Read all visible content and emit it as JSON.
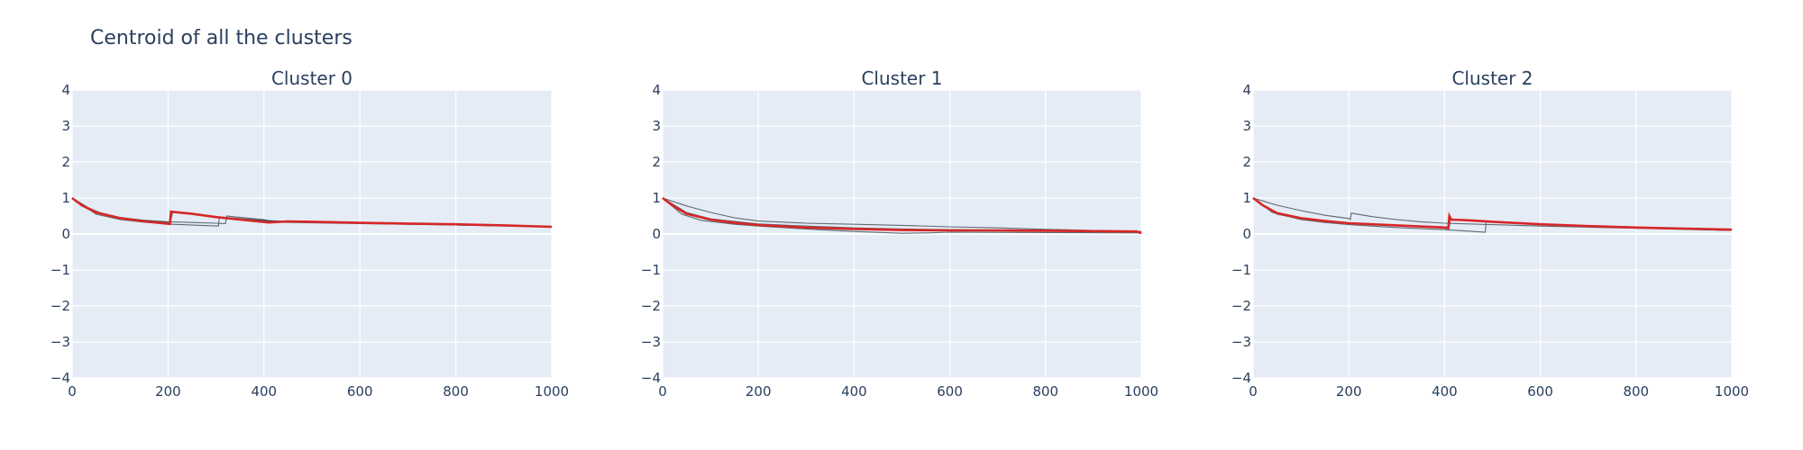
{
  "title": "Centroid of all the clusters",
  "colors": {
    "plot_bg": "#e5ecf6",
    "grid": "#ffffff",
    "member_line": "#2f3e46",
    "centroid_line": "#d62728"
  },
  "chart_data": [
    {
      "type": "line",
      "title": "Cluster 0",
      "xlabel": "",
      "ylabel": "",
      "xlim": [
        0,
        1000
      ],
      "ylim": [
        -4,
        4
      ],
      "x_ticks": [
        "0",
        "200",
        "400",
        "600",
        "800",
        "1000"
      ],
      "y_ticks": [
        "−4",
        "−3",
        "−2",
        "−1",
        "0",
        "1",
        "2",
        "3",
        "4"
      ],
      "grid": true,
      "series": [
        {
          "role": "member",
          "points": [
            [
              0,
              1.0
            ],
            [
              50,
              0.6
            ],
            [
              100,
              0.45
            ],
            [
              150,
              0.38
            ],
            [
              200,
              0.34
            ],
            [
              204,
              0.34
            ],
            [
              250,
              0.32
            ],
            [
              300,
              0.3
            ],
            [
              320,
              0.29
            ],
            [
              322,
              0.5
            ],
            [
              400,
              0.4
            ],
            [
              420,
              0.33
            ],
            [
              500,
              0.31
            ],
            [
              600,
              0.29
            ],
            [
              800,
              0.25
            ],
            [
              1000,
              0.2
            ]
          ]
        },
        {
          "role": "member",
          "points": [
            [
              0,
              1.0
            ],
            [
              50,
              0.55
            ],
            [
              100,
              0.4
            ],
            [
              150,
              0.33
            ],
            [
              200,
              0.28
            ],
            [
              210,
              0.27
            ],
            [
              305,
              0.22
            ],
            [
              307,
              0.45
            ],
            [
              400,
              0.37
            ],
            [
              450,
              0.34
            ],
            [
              600,
              0.3
            ],
            [
              800,
              0.25
            ],
            [
              1000,
              0.2
            ]
          ]
        },
        {
          "role": "member",
          "points": [
            [
              0,
              1.0
            ],
            [
              30,
              0.75
            ],
            [
              60,
              0.58
            ],
            [
              100,
              0.46
            ],
            [
              150,
              0.38
            ],
            [
              200,
              0.32
            ],
            [
              204,
              0.3
            ],
            [
              210,
              0.6
            ],
            [
              300,
              0.48
            ],
            [
              400,
              0.38
            ],
            [
              450,
              0.35
            ],
            [
              600,
              0.3
            ],
            [
              800,
              0.26
            ],
            [
              1000,
              0.21
            ]
          ]
        },
        {
          "role": "centroid",
          "points": [
            [
              0,
              1.0
            ],
            [
              20,
              0.8
            ],
            [
              50,
              0.6
            ],
            [
              100,
              0.44
            ],
            [
              150,
              0.35
            ],
            [
              204,
              0.28
            ],
            [
              206,
              0.62
            ],
            [
              250,
              0.56
            ],
            [
              300,
              0.47
            ],
            [
              350,
              0.4
            ],
            [
              410,
              0.32
            ],
            [
              450,
              0.35
            ],
            [
              500,
              0.34
            ],
            [
              600,
              0.31
            ],
            [
              700,
              0.29
            ],
            [
              800,
              0.27
            ],
            [
              900,
              0.24
            ],
            [
              1000,
              0.2
            ]
          ]
        }
      ]
    },
    {
      "type": "line",
      "title": "Cluster 1",
      "xlabel": "",
      "ylabel": "",
      "xlim": [
        0,
        1000
      ],
      "ylim": [
        -4,
        4
      ],
      "x_ticks": [
        "0",
        "200",
        "400",
        "600",
        "800",
        "1000"
      ],
      "y_ticks": [
        "−4",
        "−3",
        "−2",
        "−1",
        "0",
        "1",
        "2",
        "3",
        "4"
      ],
      "grid": true,
      "series": [
        {
          "role": "member",
          "points": [
            [
              0,
              1.0
            ],
            [
              50,
              0.78
            ],
            [
              100,
              0.6
            ],
            [
              150,
              0.45
            ],
            [
              200,
              0.36
            ],
            [
              300,
              0.3
            ],
            [
              400,
              0.27
            ],
            [
              500,
              0.24
            ],
            [
              600,
              0.2
            ],
            [
              700,
              0.17
            ],
            [
              800,
              0.13
            ],
            [
              900,
              0.1
            ],
            [
              1000,
              0.07
            ]
          ]
        },
        {
          "role": "member",
          "points": [
            [
              0,
              1.0
            ],
            [
              40,
              0.55
            ],
            [
              80,
              0.38
            ],
            [
              150,
              0.27
            ],
            [
              200,
              0.22
            ],
            [
              300,
              0.14
            ],
            [
              400,
              0.07
            ],
            [
              500,
              0.02
            ],
            [
              550,
              0.03
            ],
            [
              600,
              0.05
            ],
            [
              800,
              0.04
            ],
            [
              1000,
              0.03
            ]
          ]
        },
        {
          "role": "member",
          "points": [
            [
              0,
              1.0
            ],
            [
              50,
              0.6
            ],
            [
              100,
              0.42
            ],
            [
              200,
              0.28
            ],
            [
              300,
              0.22
            ],
            [
              400,
              0.17
            ],
            [
              500,
              0.14
            ],
            [
              600,
              0.12
            ],
            [
              800,
              0.1
            ],
            [
              1000,
              0.06
            ]
          ]
        },
        {
          "role": "centroid",
          "points": [
            [
              0,
              1.0
            ],
            [
              20,
              0.8
            ],
            [
              50,
              0.56
            ],
            [
              100,
              0.4
            ],
            [
              150,
              0.31
            ],
            [
              200,
              0.25
            ],
            [
              300,
              0.18
            ],
            [
              400,
              0.14
            ],
            [
              500,
              0.11
            ],
            [
              600,
              0.1
            ],
            [
              700,
              0.1
            ],
            [
              800,
              0.09
            ],
            [
              900,
              0.08
            ],
            [
              990,
              0.07
            ],
            [
              1000,
              0.02
            ]
          ]
        }
      ]
    },
    {
      "type": "line",
      "title": "Cluster 2",
      "xlabel": "",
      "ylabel": "",
      "xlim": [
        0,
        1000
      ],
      "ylim": [
        -4,
        4
      ],
      "x_ticks": [
        "0",
        "200",
        "400",
        "600",
        "800",
        "1000"
      ],
      "y_ticks": [
        "−4",
        "−3",
        "−2",
        "−1",
        "0",
        "1",
        "2",
        "3",
        "4"
      ],
      "grid": true,
      "series": [
        {
          "role": "member",
          "points": [
            [
              0,
              1.0
            ],
            [
              50,
              0.8
            ],
            [
              100,
              0.65
            ],
            [
              150,
              0.52
            ],
            [
              200,
              0.43
            ],
            [
              203,
              0.4
            ],
            [
              205,
              0.58
            ],
            [
              250,
              0.48
            ],
            [
              300,
              0.4
            ],
            [
              350,
              0.34
            ],
            [
              400,
              0.3
            ],
            [
              450,
              0.28
            ],
            [
              500,
              0.26
            ],
            [
              600,
              0.22
            ],
            [
              800,
              0.16
            ],
            [
              1000,
              0.1
            ]
          ]
        },
        {
          "role": "member",
          "points": [
            [
              0,
              1.0
            ],
            [
              40,
              0.6
            ],
            [
              100,
              0.4
            ],
            [
              150,
              0.32
            ],
            [
              200,
              0.26
            ],
            [
              250,
              0.22
            ],
            [
              300,
              0.18
            ],
            [
              400,
              0.12
            ],
            [
              450,
              0.08
            ],
            [
              485,
              0.05
            ],
            [
              487,
              0.35
            ],
            [
              550,
              0.32
            ],
            [
              600,
              0.28
            ],
            [
              800,
              0.18
            ],
            [
              1000,
              0.1
            ]
          ]
        },
        {
          "role": "member",
          "points": [
            [
              0,
              1.0
            ],
            [
              50,
              0.55
            ],
            [
              100,
              0.42
            ],
            [
              200,
              0.3
            ],
            [
              300,
              0.24
            ],
            [
              400,
              0.2
            ],
            [
              410,
              0.2
            ],
            [
              412,
              0.4
            ],
            [
              500,
              0.35
            ],
            [
              600,
              0.27
            ],
            [
              800,
              0.19
            ],
            [
              1000,
              0.12
            ]
          ]
        },
        {
          "role": "centroid",
          "points": [
            [
              0,
              1.0
            ],
            [
              20,
              0.8
            ],
            [
              50,
              0.58
            ],
            [
              100,
              0.44
            ],
            [
              150,
              0.36
            ],
            [
              200,
              0.3
            ],
            [
              300,
              0.24
            ],
            [
              400,
              0.18
            ],
            [
              408,
              0.16
            ],
            [
              410,
              0.5
            ],
            [
              414,
              0.4
            ],
            [
              450,
              0.38
            ],
            [
              500,
              0.34
            ],
            [
              600,
              0.27
            ],
            [
              700,
              0.22
            ],
            [
              800,
              0.18
            ],
            [
              900,
              0.15
            ],
            [
              1000,
              0.12
            ]
          ]
        }
      ]
    }
  ]
}
